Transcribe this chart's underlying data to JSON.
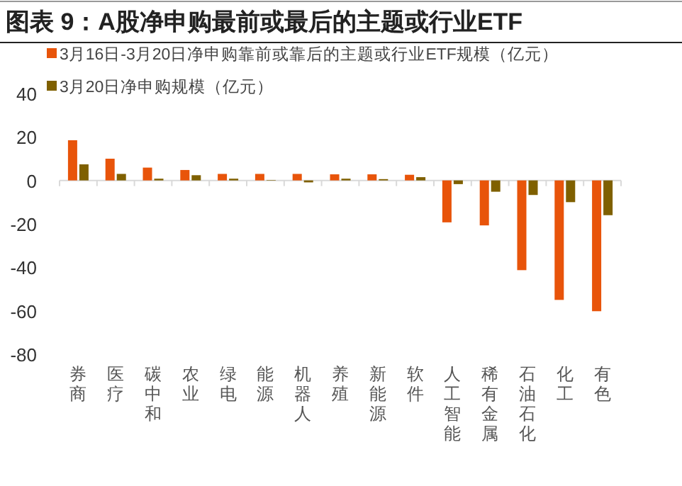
{
  "chart_data": {
    "type": "bar",
    "title": "图表 9：A股净申购最前或最后的主题或行业ETF",
    "categories": [
      "券商",
      "医疗",
      "碳中和",
      "农业",
      "绿电",
      "能源",
      "机器人",
      "养殖",
      "新能源",
      "软件",
      "人工智能",
      "稀有金属",
      "石油石化",
      "化工",
      "有色"
    ],
    "series": [
      {
        "name": "3月16日-3月20日净申购靠前或靠后的主题或行业ETF规模（亿元）",
        "color": "#e8540a",
        "values": [
          18.5,
          10,
          5.9,
          4.8,
          3,
          3,
          3,
          2.8,
          2.8,
          2.6,
          -19.3,
          -20.7,
          -41.3,
          -55,
          -60.2
        ]
      },
      {
        "name": "3月20日净申购规模（亿元）",
        "color": "#7f6000",
        "values": [
          7.4,
          3,
          0.8,
          2.4,
          0.8,
          0.2,
          -0.9,
          0.8,
          0.6,
          1.5,
          -1.7,
          -5.2,
          -6.7,
          -10,
          -16
        ]
      }
    ],
    "ylim": [
      -80,
      40
    ],
    "yticks": [
      -80,
      -60,
      -40,
      -20,
      0,
      20,
      40
    ],
    "legend": "top"
  }
}
